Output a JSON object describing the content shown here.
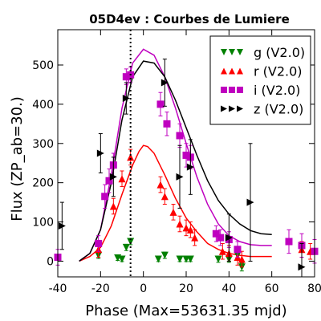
{
  "chart_data": {
    "type": "scatter",
    "title": "05D4ev : Courbes de Lumiere",
    "xlabel": "Phase (Max=53631.35 mjd)",
    "ylabel": "Flux (ZP_ab=30.)",
    "xlim": [
      -40,
      80
    ],
    "ylim": [
      -40,
      590
    ],
    "xticks": [
      -40,
      -20,
      0,
      20,
      40,
      60,
      80
    ],
    "yticks": [
      0,
      100,
      200,
      300,
      400,
      500
    ],
    "max_marker_x": -6,
    "grid": false,
    "legend_position": "top-right",
    "series": [
      {
        "name": "g (V2.0)",
        "color": "#008000",
        "marker": "triangle-down",
        "points": [
          {
            "x": -21,
            "y": 15,
            "err": 8
          },
          {
            "x": -12,
            "y": 8,
            "err": 6
          },
          {
            "x": -10,
            "y": 5,
            "err": 6
          },
          {
            "x": -8,
            "y": 35,
            "err": 8
          },
          {
            "x": -6,
            "y": 50,
            "err": 8
          },
          {
            "x": 7,
            "y": 5,
            "err": 6
          },
          {
            "x": 10,
            "y": 15,
            "err": 8
          },
          {
            "x": 17,
            "y": 5,
            "err": 6
          },
          {
            "x": 20,
            "y": 5,
            "err": 6
          },
          {
            "x": 22,
            "y": 5,
            "err": 6
          },
          {
            "x": 35,
            "y": 5,
            "err": 8
          },
          {
            "x": 40,
            "y": 5,
            "err": 8
          },
          {
            "x": 44,
            "y": 15,
            "err": 8
          },
          {
            "x": 46,
            "y": -15,
            "err": 10
          }
        ],
        "curve": null
      },
      {
        "name": "r (V2.0)",
        "color": "#ff0000",
        "marker": "triangle-up",
        "points": [
          {
            "x": -21,
            "y": 30,
            "err": 20
          },
          {
            "x": -14,
            "y": 140,
            "err": 20
          },
          {
            "x": -10,
            "y": 210,
            "err": 20
          },
          {
            "x": -6,
            "y": 265,
            "err": 20
          },
          {
            "x": 8,
            "y": 195,
            "err": 20
          },
          {
            "x": 10,
            "y": 165,
            "err": 20
          },
          {
            "x": 14,
            "y": 125,
            "err": 20
          },
          {
            "x": 17,
            "y": 95,
            "err": 20
          },
          {
            "x": 20,
            "y": 85,
            "err": 20
          },
          {
            "x": 22,
            "y": 80,
            "err": 20
          },
          {
            "x": 24,
            "y": 60,
            "err": 20
          },
          {
            "x": 37,
            "y": 25,
            "err": 20
          },
          {
            "x": 40,
            "y": 20,
            "err": 20
          },
          {
            "x": 44,
            "y": 10,
            "err": 20
          },
          {
            "x": 46,
            "y": 5,
            "err": 20
          },
          {
            "x": 74,
            "y": 30,
            "err": 20
          },
          {
            "x": 78,
            "y": 25,
            "err": 20
          }
        ],
        "curve": [
          [
            -30,
            0
          ],
          [
            -25,
            12
          ],
          [
            -20,
            35
          ],
          [
            -15,
            90
          ],
          [
            -10,
            170
          ],
          [
            -5,
            245
          ],
          [
            -2,
            280
          ],
          [
            0,
            295
          ],
          [
            2,
            292
          ],
          [
            5,
            275
          ],
          [
            10,
            220
          ],
          [
            15,
            160
          ],
          [
            20,
            110
          ],
          [
            25,
            75
          ],
          [
            30,
            45
          ],
          [
            35,
            30
          ],
          [
            40,
            20
          ],
          [
            45,
            15
          ],
          [
            50,
            12
          ],
          [
            55,
            12
          ],
          [
            60,
            12
          ]
        ]
      },
      {
        "name": "i (V2.0)",
        "color": "#bf00bf",
        "marker": "square",
        "points": [
          {
            "x": -40,
            "y": 10,
            "err": 20
          },
          {
            "x": -21,
            "y": 45,
            "err": 20
          },
          {
            "x": -18,
            "y": 165,
            "err": 30
          },
          {
            "x": -16,
            "y": 205,
            "err": 30
          },
          {
            "x": -14,
            "y": 245,
            "err": 30
          },
          {
            "x": -8,
            "y": 470,
            "err": 20
          },
          {
            "x": -6,
            "y": 475,
            "err": 20
          },
          {
            "x": 8,
            "y": 400,
            "err": 30
          },
          {
            "x": 11,
            "y": 350,
            "err": 30
          },
          {
            "x": 17,
            "y": 320,
            "err": 30
          },
          {
            "x": 20,
            "y": 270,
            "err": 30
          },
          {
            "x": 22,
            "y": 265,
            "err": 30
          },
          {
            "x": 34,
            "y": 70,
            "err": 20
          },
          {
            "x": 36,
            "y": 60,
            "err": 20
          },
          {
            "x": 40,
            "y": 55,
            "err": 20
          },
          {
            "x": 44,
            "y": 30,
            "err": 20
          },
          {
            "x": 68,
            "y": 50,
            "err": 30
          },
          {
            "x": 74,
            "y": 40,
            "err": 30
          },
          {
            "x": 80,
            "y": 25,
            "err": 30
          }
        ],
        "curve": [
          [
            -30,
            0
          ],
          [
            -25,
            20
          ],
          [
            -20,
            80
          ],
          [
            -15,
            220
          ],
          [
            -10,
            390
          ],
          [
            -5,
            505
          ],
          [
            0,
            540
          ],
          [
            5,
            525
          ],
          [
            10,
            470
          ],
          [
            15,
            390
          ],
          [
            20,
            300
          ],
          [
            25,
            215
          ],
          [
            30,
            145
          ],
          [
            35,
            95
          ],
          [
            40,
            65
          ],
          [
            45,
            50
          ],
          [
            50,
            42
          ],
          [
            55,
            40
          ],
          [
            60,
            40
          ]
        ]
      },
      {
        "name": "z (V2.0)",
        "color": "#000000",
        "marker": "triangle-right",
        "points": [
          {
            "x": -38,
            "y": 90,
            "err": 60
          },
          {
            "x": -20,
            "y": 275,
            "err": 50
          },
          {
            "x": -14,
            "y": 215,
            "err": 50
          },
          {
            "x": -8,
            "y": 415,
            "err": 40
          },
          {
            "x": 10,
            "y": 455,
            "err": 60
          },
          {
            "x": 17,
            "y": 215,
            "err": 80
          },
          {
            "x": 22,
            "y": 240,
            "err": 70
          },
          {
            "x": 40,
            "y": 60,
            "err": 60
          },
          {
            "x": 50,
            "y": 150,
            "err": 150
          },
          {
            "x": 74,
            "y": -15,
            "err": 60
          }
        ],
        "curve": [
          [
            -30,
            0
          ],
          [
            -25,
            20
          ],
          [
            -20,
            80
          ],
          [
            -15,
            200
          ],
          [
            -10,
            360
          ],
          [
            -5,
            470
          ],
          [
            0,
            510
          ],
          [
            5,
            505
          ],
          [
            10,
            470
          ],
          [
            15,
            410
          ],
          [
            20,
            340
          ],
          [
            25,
            270
          ],
          [
            30,
            205
          ],
          [
            35,
            155
          ],
          [
            40,
            120
          ],
          [
            45,
            95
          ],
          [
            50,
            78
          ],
          [
            55,
            70
          ],
          [
            60,
            68
          ]
        ]
      }
    ]
  }
}
